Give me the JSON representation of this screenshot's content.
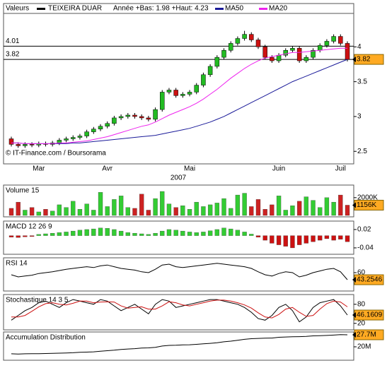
{
  "chart_data": [
    {
      "type": "candlestick",
      "legend_label": "Valeurs",
      "title": "TEIXEIRA DUAR",
      "subtitle": "Année +Bas: 1.98 +Haut: 4.23",
      "categories": [
        null,
        null,
        null,
        null,
        "Mar",
        null,
        null,
        null,
        null,
        null,
        null,
        null,
        null,
        null,
        "Avr",
        null,
        null,
        null,
        null,
        null,
        null,
        null,
        null,
        null,
        null,
        null,
        "Mai",
        null,
        null,
        null,
        null,
        null,
        null,
        null,
        null,
        null,
        null,
        null,
        null,
        "Juin",
        null,
        null,
        null,
        null,
        null,
        null,
        null,
        null,
        "Juil",
        null
      ],
      "x_title": "2007",
      "ylim": [
        2.32,
        4.47
      ],
      "yticks": [
        2.5,
        3,
        3.5,
        4
      ],
      "levels": [
        4.01,
        3.82
      ],
      "current": 3.82,
      "credit": "© IT-Finance.com / Boursorama",
      "up_color": "#22bb22",
      "down_color": "#cc1111",
      "open": [
        2.68,
        2.6,
        2.58,
        2.6,
        2.59,
        2.61,
        2.6,
        2.62,
        2.66,
        2.68,
        2.7,
        2.72,
        2.78,
        2.82,
        2.86,
        2.9,
        2.98,
        3.0,
        3.02,
        3.0,
        2.98,
        2.96,
        3.1,
        3.35,
        3.38,
        3.3,
        3.32,
        3.35,
        3.45,
        3.6,
        3.72,
        3.85,
        3.95,
        4.05,
        4.12,
        4.18,
        4.1,
        4.0,
        3.85,
        3.8,
        3.88,
        3.95,
        3.98,
        3.8,
        3.85,
        3.95,
        4.02,
        4.08,
        4.15,
        4.05
      ],
      "high": [
        2.71,
        2.63,
        2.63,
        2.63,
        2.64,
        2.64,
        2.65,
        2.69,
        2.71,
        2.73,
        2.75,
        2.81,
        2.85,
        2.89,
        2.93,
        3.01,
        3.03,
        3.05,
        3.05,
        3.03,
        3.01,
        3.13,
        3.38,
        3.41,
        3.41,
        3.35,
        3.38,
        3.48,
        3.63,
        3.75,
        3.88,
        3.98,
        4.08,
        4.15,
        4.23,
        4.21,
        4.13,
        4.03,
        3.88,
        3.91,
        3.98,
        4.01,
        4.01,
        3.88,
        3.98,
        4.05,
        4.11,
        4.18,
        4.18,
        4.08
      ],
      "low": [
        2.57,
        2.55,
        2.55,
        2.56,
        2.56,
        2.57,
        2.57,
        2.59,
        2.63,
        2.65,
        2.67,
        2.69,
        2.75,
        2.79,
        2.83,
        2.87,
        2.95,
        2.97,
        2.97,
        2.95,
        2.93,
        2.93,
        3.07,
        3.32,
        3.27,
        3.27,
        3.29,
        3.32,
        3.42,
        3.57,
        3.69,
        3.82,
        3.92,
        4.02,
        4.09,
        4.07,
        3.97,
        3.82,
        3.77,
        3.77,
        3.85,
        3.92,
        3.77,
        3.77,
        3.82,
        3.92,
        3.99,
        4.05,
        4.02,
        3.79
      ],
      "close": [
        2.6,
        2.58,
        2.6,
        2.59,
        2.61,
        2.6,
        2.62,
        2.66,
        2.68,
        2.7,
        2.72,
        2.78,
        2.82,
        2.86,
        2.9,
        2.98,
        3.0,
        3.02,
        3.0,
        2.98,
        2.96,
        3.1,
        3.35,
        3.38,
        3.3,
        3.32,
        3.35,
        3.45,
        3.6,
        3.72,
        3.85,
        3.95,
        4.05,
        4.12,
        4.18,
        4.1,
        4.0,
        3.85,
        3.8,
        3.88,
        3.95,
        3.98,
        3.8,
        3.85,
        3.95,
        4.02,
        4.08,
        4.15,
        4.05,
        3.82
      ],
      "series": [
        {
          "name": "MA50",
          "color": "#1a1a99",
          "values": [
            2.62,
            2.62,
            2.61,
            2.61,
            2.61,
            2.61,
            2.61,
            2.61,
            2.61,
            2.62,
            2.62,
            2.63,
            2.64,
            2.65,
            2.66,
            2.67,
            2.68,
            2.69,
            2.7,
            2.71,
            2.72,
            2.73,
            2.75,
            2.77,
            2.79,
            2.81,
            2.83,
            2.86,
            2.89,
            2.92,
            2.96,
            3.0,
            3.05,
            3.1,
            3.15,
            3.2,
            3.25,
            3.3,
            3.35,
            3.4,
            3.45,
            3.5,
            3.54,
            3.58,
            3.62,
            3.66,
            3.7,
            3.74,
            3.78,
            3.82
          ]
        },
        {
          "name": "MA20",
          "color": "#ee22ee",
          "values": [
            2.62,
            2.62,
            2.61,
            2.61,
            2.61,
            2.61,
            2.61,
            2.62,
            2.62,
            2.63,
            2.64,
            2.65,
            2.67,
            2.69,
            2.71,
            2.74,
            2.77,
            2.8,
            2.83,
            2.86,
            2.88,
            2.92,
            2.97,
            3.02,
            3.06,
            3.1,
            3.14,
            3.19,
            3.25,
            3.32,
            3.39,
            3.47,
            3.55,
            3.62,
            3.69,
            3.75,
            3.8,
            3.84,
            3.86,
            3.88,
            3.9,
            3.92,
            3.92,
            3.93,
            3.94,
            3.95,
            3.96,
            3.97,
            3.98,
            3.98
          ]
        }
      ]
    },
    {
      "type": "bar",
      "title": "Volume 15",
      "up_color": "#33cc33",
      "down_color": "#cc2222",
      "values": [
        800,
        1500,
        600,
        900,
        400,
        700,
        500,
        1200,
        900,
        1600,
        700,
        1300,
        600,
        2600,
        1000,
        1800,
        2200,
        900,
        800,
        2400,
        600,
        1900,
        2700,
        1300,
        900,
        1100,
        700,
        1500,
        1000,
        1200,
        1400,
        1900,
        800,
        2300,
        2500,
        1000,
        1800,
        700,
        1200,
        2200,
        600,
        1100,
        1600,
        2100,
        1700,
        900,
        2000,
        1500,
        2300,
        1156
      ],
      "ylim": [
        0,
        3100
      ],
      "yticks": [
        {
          "value": 2000,
          "label": "2000K"
        }
      ],
      "current": {
        "value": 1156,
        "label": "1156K"
      }
    },
    {
      "type": "bar",
      "title": "MACD 12 26 9",
      "up_color": "#33cc33",
      "down_color": "#cc1111",
      "values": [
        -0.005,
        -0.006,
        -0.004,
        -0.003,
        0.004,
        0.006,
        0.008,
        0.01,
        0.012,
        0.015,
        0.018,
        0.02,
        0.022,
        0.025,
        0.024,
        0.02,
        0.015,
        0.01,
        0.008,
        0.006,
        0.004,
        0.008,
        0.015,
        0.02,
        0.018,
        0.015,
        0.012,
        0.01,
        0.012,
        0.016,
        0.02,
        0.025,
        0.022,
        0.018,
        0.012,
        0.005,
        -0.005,
        -0.015,
        -0.025,
        -0.03,
        -0.035,
        -0.04,
        -0.03,
        -0.025,
        -0.02,
        -0.015,
        -0.01,
        -0.015,
        -0.012,
        -0.02
      ],
      "ylim": [
        -0.054,
        0.036
      ],
      "yticks": [
        0.02,
        -0.04
      ]
    },
    {
      "type": "line",
      "title": "RSI 14",
      "ylim": [
        20,
        90
      ],
      "yticks": [
        60
      ],
      "current": 43.2546,
      "series": [
        {
          "color": "#000000",
          "values": [
            55,
            50,
            52,
            54,
            58,
            60,
            62,
            65,
            68,
            70,
            72,
            74,
            72,
            76,
            78,
            74,
            70,
            68,
            66,
            62,
            60,
            68,
            78,
            80,
            74,
            72,
            74,
            76,
            78,
            80,
            82,
            80,
            78,
            76,
            74,
            70,
            62,
            55,
            52,
            58,
            62,
            60,
            50,
            54,
            60,
            64,
            68,
            70,
            62,
            43.2546
          ]
        }
      ]
    },
    {
      "type": "line",
      "title": "Stochastique 14 3 5",
      "ylim": [
        4,
        104
      ],
      "yticks": [
        80,
        20
      ],
      "current": 46.1609,
      "series": [
        {
          "color": "#000000",
          "values": [
            30,
            45,
            60,
            70,
            85,
            90,
            80,
            70,
            85,
            95,
            90,
            85,
            80,
            95,
            90,
            75,
            60,
            70,
            80,
            65,
            50,
            80,
            95,
            90,
            70,
            75,
            80,
            85,
            90,
            95,
            95,
            90,
            85,
            80,
            70,
            55,
            35,
            30,
            45,
            70,
            80,
            60,
            25,
            40,
            70,
            85,
            90,
            95,
            75,
            46.1609
          ]
        },
        {
          "color": "#cc1111",
          "values": [
            40,
            40,
            45,
            58,
            72,
            82,
            85,
            80,
            78,
            83,
            90,
            90,
            85,
            87,
            88,
            87,
            75,
            68,
            70,
            72,
            65,
            65,
            75,
            88,
            85,
            78,
            75,
            80,
            85,
            90,
            93,
            93,
            90,
            85,
            78,
            68,
            53,
            40,
            37,
            48,
            65,
            70,
            55,
            42,
            45,
            65,
            82,
            90,
            87,
            72
          ]
        }
      ]
    },
    {
      "type": "line",
      "title": "Accumulation Distribution",
      "ylim": [
        12.3,
        29.5
      ],
      "yticks": [
        {
          "value": 20,
          "label": "20M"
        }
      ],
      "current": {
        "value": 27.7,
        "label": "27.7M"
      },
      "series": [
        {
          "color": "#000000",
          "values": [
            15.5,
            15.4,
            15.5,
            15.6,
            15.6,
            15.7,
            15.8,
            15.9,
            16.0,
            16.2,
            16.5,
            16.6,
            16.8,
            17.2,
            17.5,
            17.8,
            18.3,
            18.6,
            18.8,
            19.2,
            19.3,
            19.7,
            20.5,
            20.9,
            21.0,
            21.2,
            21.3,
            21.6,
            21.9,
            22.2,
            22.6,
            23.2,
            23.6,
            24.2,
            24.8,
            25.2,
            25.4,
            25.5,
            25.6,
            26.1,
            26.3,
            26.4,
            26.5,
            26.7,
            27.0,
            27.1,
            27.3,
            27.5,
            27.8,
            27.7
          ]
        }
      ]
    }
  ]
}
